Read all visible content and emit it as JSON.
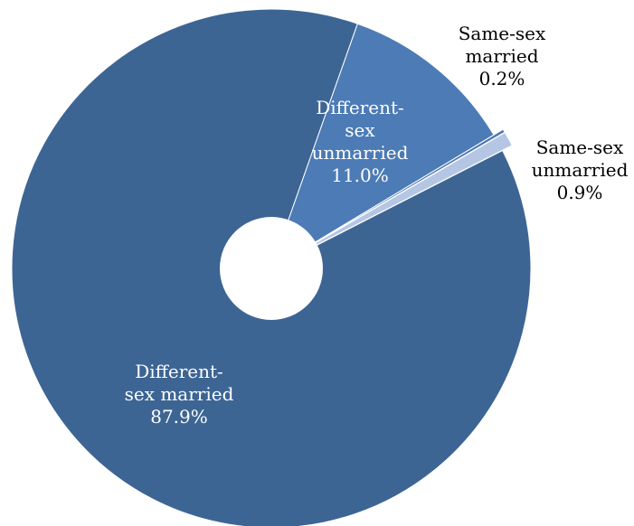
{
  "chart_data": {
    "type": "pie",
    "style": "donut",
    "slices": [
      {
        "label_lines": [
          "Same-sex",
          "married"
        ],
        "value_label": "0.2%",
        "value": 0.2,
        "color": "#4f78b0",
        "exploded": true,
        "label_color": "#000000"
      },
      {
        "label_lines": [
          "Same-sex",
          "unmarried"
        ],
        "value_label": "0.9%",
        "value": 0.9,
        "color": "#b4c6e4",
        "exploded": true,
        "label_color": "#000000"
      },
      {
        "label_lines": [
          "Different-",
          "sex married"
        ],
        "value_label": "87.9%",
        "value": 87.9,
        "color": "#3d6594",
        "exploded": false,
        "label_color": "#ffffff"
      },
      {
        "label_lines": [
          "Different-",
          "sex",
          "unmarried"
        ],
        "value_label": "11.0%",
        "value": 11.0,
        "color": "#4c7bb6",
        "exploded": false,
        "label_color": "#ffffff"
      }
    ],
    "legend": "none"
  }
}
